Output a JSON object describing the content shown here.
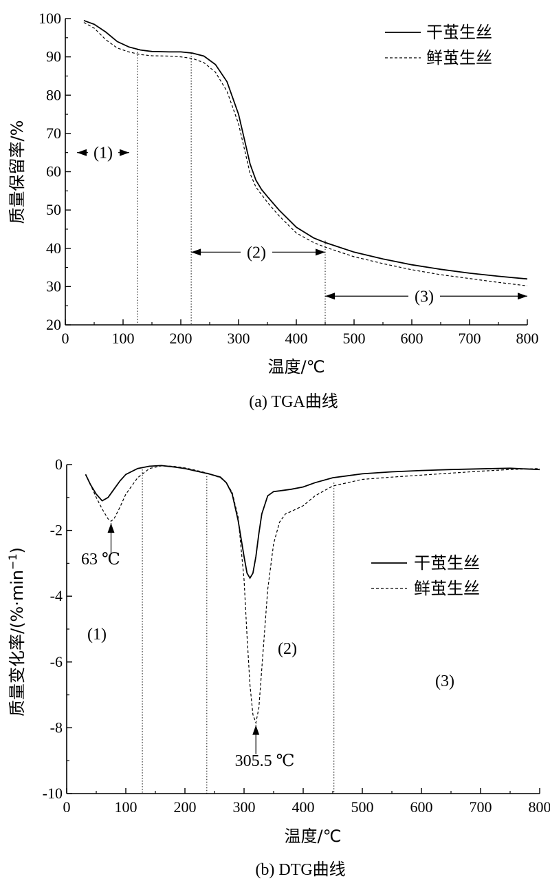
{
  "chart_data": [
    {
      "type": "line",
      "title": "(a)  TGA曲线",
      "xlabel": "温度/℃",
      "ylabel": "质量保留率/%",
      "xlim": [
        0,
        800
      ],
      "ylim": [
        20,
        100
      ],
      "xticks": [
        "0",
        "100",
        "200",
        "300",
        "400",
        "500",
        "600",
        "700",
        "800"
      ],
      "yticks": [
        "20",
        "30",
        "40",
        "50",
        "60",
        "70",
        "80",
        "90",
        "100"
      ],
      "legend": [
        "干茧生丝",
        "鲜茧生丝"
      ],
      "series": [
        {
          "name": "干茧生丝",
          "style": "solid",
          "x": [
            32,
            50,
            70,
            90,
            110,
            130,
            150,
            180,
            200,
            220,
            240,
            260,
            280,
            300,
            310,
            320,
            330,
            340,
            350,
            370,
            400,
            430,
            450,
            500,
            550,
            600,
            650,
            700,
            750,
            800
          ],
          "y": [
            99.5,
            98.5,
            96.5,
            94.0,
            92.6,
            91.8,
            91.4,
            91.3,
            91.3,
            91.0,
            90.2,
            88.0,
            83.5,
            75.0,
            68.5,
            62.0,
            57.8,
            55.3,
            53.5,
            50.0,
            45.5,
            42.7,
            41.5,
            39.0,
            37.2,
            35.7,
            34.5,
            33.5,
            32.7,
            32.0
          ]
        },
        {
          "name": "鲜茧生丝",
          "style": "dashed",
          "x": [
            32,
            50,
            70,
            90,
            110,
            130,
            150,
            180,
            200,
            220,
            240,
            260,
            280,
            300,
            310,
            320,
            330,
            340,
            350,
            370,
            400,
            430,
            450,
            500,
            550,
            600,
            650,
            700,
            750,
            800
          ],
          "y": [
            99.0,
            97.5,
            94.5,
            92.3,
            91.3,
            90.6,
            90.3,
            90.2,
            90.0,
            89.6,
            88.5,
            86.0,
            81.0,
            72.5,
            66.0,
            59.5,
            56.0,
            54.0,
            52.0,
            48.5,
            44.0,
            41.5,
            40.3,
            37.8,
            36.0,
            34.4,
            33.1,
            32.1,
            31.1,
            30.2
          ]
        }
      ],
      "vlines": [
        125,
        218,
        450
      ],
      "annotations": [
        "(1)",
        "(2)",
        "(3)"
      ]
    },
    {
      "type": "line",
      "title": "(b) DTG曲线",
      "xlabel": "温度/℃",
      "ylabel_main": "质量变化率/(%·min",
      "ylabel_sup": "−1",
      "ylabel_end": ")",
      "xlim": [
        0,
        800
      ],
      "ylim": [
        -10,
        0
      ],
      "xticks": [
        "0",
        "100",
        "200",
        "300",
        "400",
        "500",
        "600",
        "700",
        "800"
      ],
      "yticks": [
        "-10",
        "-8",
        "-6",
        "-4",
        "-2",
        "0"
      ],
      "legend": [
        "干茧生丝",
        "鲜茧生丝"
      ],
      "series": [
        {
          "name": "干茧生丝",
          "style": "solid",
          "x": [
            32,
            40,
            50,
            60,
            70,
            80,
            90,
            100,
            120,
            140,
            160,
            180,
            200,
            220,
            240,
            260,
            270,
            280,
            290,
            300,
            305,
            310,
            315,
            320,
            325,
            330,
            340,
            350,
            360,
            380,
            400,
            420,
            450,
            500,
            550,
            600,
            650,
            700,
            750,
            800
          ],
          "y": [
            -0.3,
            -0.6,
            -0.9,
            -1.1,
            -1.0,
            -0.75,
            -0.5,
            -0.3,
            -0.12,
            -0.05,
            -0.03,
            -0.07,
            -0.12,
            -0.2,
            -0.28,
            -0.38,
            -0.55,
            -0.9,
            -1.7,
            -2.8,
            -3.3,
            -3.45,
            -3.3,
            -2.8,
            -2.1,
            -1.5,
            -0.95,
            -0.82,
            -0.8,
            -0.75,
            -0.68,
            -0.55,
            -0.4,
            -0.28,
            -0.22,
            -0.18,
            -0.15,
            -0.13,
            -0.11,
            -0.15
          ]
        },
        {
          "name": "鲜茧生丝",
          "style": "dashed",
          "x": [
            32,
            40,
            50,
            60,
            70,
            75,
            80,
            90,
            100,
            120,
            140,
            160,
            180,
            200,
            220,
            240,
            260,
            270,
            280,
            290,
            300,
            305,
            310,
            315,
            320,
            325,
            330,
            340,
            350,
            360,
            370,
            380,
            400,
            420,
            450,
            500,
            550,
            600,
            650,
            700,
            750,
            800
          ],
          "y": [
            -0.3,
            -0.6,
            -1.0,
            -1.35,
            -1.65,
            -1.72,
            -1.65,
            -1.3,
            -0.9,
            -0.4,
            -0.12,
            -0.04,
            -0.05,
            -0.1,
            -0.18,
            -0.27,
            -0.4,
            -0.55,
            -0.85,
            -1.6,
            -3.5,
            -5.2,
            -6.7,
            -7.6,
            -7.85,
            -7.4,
            -6.2,
            -3.8,
            -2.4,
            -1.75,
            -1.5,
            -1.42,
            -1.25,
            -0.95,
            -0.65,
            -0.45,
            -0.38,
            -0.32,
            -0.26,
            -0.2,
            -0.15,
            -0.12
          ]
        }
      ],
      "vlines": [
        128,
        237,
        452
      ],
      "annotations": [
        "63 ℃",
        "305.5 ℃",
        "(1)",
        "(2)",
        "(3)"
      ]
    }
  ]
}
